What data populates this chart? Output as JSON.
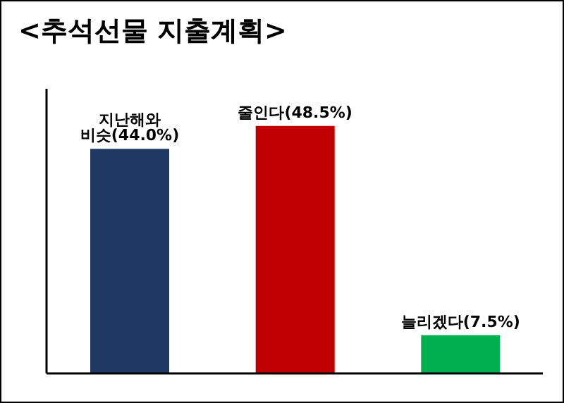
{
  "chart_data": {
    "type": "bar",
    "title": "<추석선물 지출계획>",
    "categories": [
      null,
      null,
      null
    ],
    "values": [
      44.0,
      48.5,
      7.5
    ],
    "colors": [
      "#1f3864",
      "#c00000",
      "#00b050"
    ],
    "value_labels": [
      "지난해와 비슷(44.0%)",
      "줄인다(48.5%)",
      "늘리겠다(7.5%)"
    ],
    "grid": false,
    "legend": false
  }
}
